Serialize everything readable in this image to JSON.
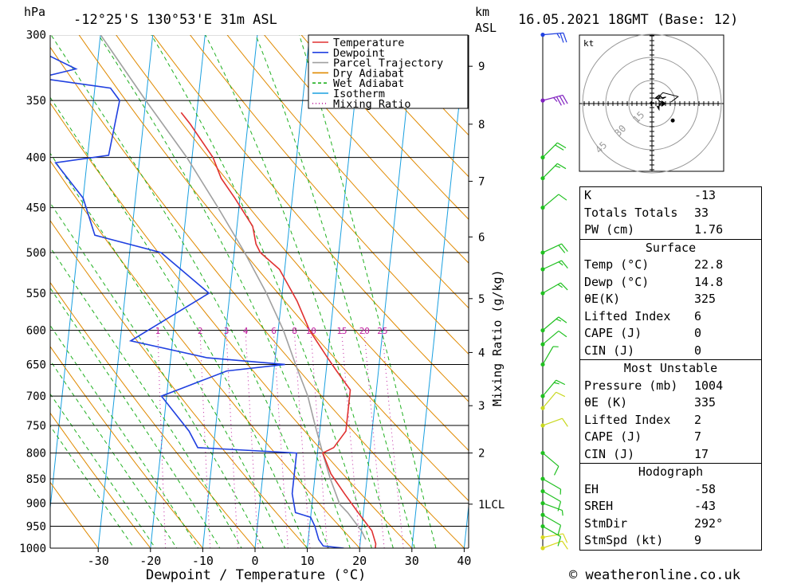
{
  "header": {
    "location": "-12°25'S 130°53'E 31m ASL",
    "datetime": "16.05.2021 18GMT (Base: 12)",
    "hpa_unit": "hPa",
    "km_unit": "km",
    "asl_unit": "ASL"
  },
  "footer": {
    "copyright": "© weatheronline.co.uk"
  },
  "chart_data": {
    "type": "skew-t log-p sounding",
    "xlabel": "Dewpoint / Temperature (°C)",
    "mixing_ratio_axis_label": "Mixing Ratio (g/kg)",
    "x_ticks": [
      -30,
      -20,
      -10,
      0,
      10,
      20,
      30,
      40
    ],
    "x_range": [
      -40,
      40
    ],
    "pressure_range_hpa": [
      1000,
      300
    ],
    "pressure_ticks": [
      300,
      350,
      400,
      450,
      500,
      550,
      600,
      650,
      700,
      750,
      800,
      850,
      900,
      950,
      1000
    ],
    "km_ticks": [
      {
        "label": "9",
        "p": 323
      },
      {
        "label": "8",
        "p": 370
      },
      {
        "label": "7",
        "p": 423
      },
      {
        "label": "6",
        "p": 482
      },
      {
        "label": "5",
        "p": 557
      },
      {
        "label": "4",
        "p": 632
      },
      {
        "label": "3",
        "p": 716
      },
      {
        "label": "2",
        "p": 800
      },
      {
        "label": "1",
        "p": 902
      }
    ],
    "lcl": {
      "label": "LCL",
      "p": 902
    },
    "mixing_ratio_labels": [
      "1",
      "2",
      "3",
      "4",
      "6",
      "8",
      "10",
      "15",
      "20",
      "25"
    ],
    "mixing_ratio_values": [
      1,
      2,
      3,
      4,
      6,
      8,
      10,
      15,
      20,
      25
    ],
    "legend": [
      {
        "name": "Temperature",
        "color": "#e03030",
        "style": "solid"
      },
      {
        "name": "Dewpoint",
        "color": "#2040e0",
        "style": "solid"
      },
      {
        "name": "Parcel Trajectory",
        "color": "#a0a0a0",
        "style": "solid"
      },
      {
        "name": "Dry Adiabat",
        "color": "#e08a00",
        "style": "solid"
      },
      {
        "name": "Wet Adiabat",
        "color": "#20b020",
        "style": "dashed"
      },
      {
        "name": "Isotherm",
        "color": "#1aa0e0",
        "style": "solid"
      },
      {
        "name": "Mixing Ratio",
        "color": "#c020a0",
        "style": "dotted"
      }
    ],
    "series": [
      {
        "name": "Temperature",
        "color": "#e03030",
        "points": [
          {
            "p": 1000,
            "t": 23
          },
          {
            "p": 990,
            "t": 23
          },
          {
            "p": 960,
            "t": 22
          },
          {
            "p": 920,
            "t": 19
          },
          {
            "p": 880,
            "t": 16
          },
          {
            "p": 840,
            "t": 13
          },
          {
            "p": 800,
            "t": 11
          },
          {
            "p": 790,
            "t": 13
          },
          {
            "p": 760,
            "t": 15
          },
          {
            "p": 720,
            "t": 15
          },
          {
            "p": 690,
            "t": 15
          },
          {
            "p": 660,
            "t": 12
          },
          {
            "p": 640,
            "t": 10
          },
          {
            "p": 600,
            "t": 6
          },
          {
            "p": 560,
            "t": 3
          },
          {
            "p": 520,
            "t": -1
          },
          {
            "p": 500,
            "t": -5
          },
          {
            "p": 490,
            "t": -6
          },
          {
            "p": 470,
            "t": -7
          },
          {
            "p": 440,
            "t": -11
          },
          {
            "p": 420,
            "t": -14
          },
          {
            "p": 400,
            "t": -16
          },
          {
            "p": 370,
            "t": -21
          },
          {
            "p": 360,
            "t": -23
          }
        ]
      },
      {
        "name": "Dewpoint",
        "color": "#2040e0",
        "points": [
          {
            "p": 1000,
            "t": 17
          },
          {
            "p": 995,
            "t": 13
          },
          {
            "p": 980,
            "t": 12
          },
          {
            "p": 950,
            "t": 11
          },
          {
            "p": 930,
            "t": 10
          },
          {
            "p": 920,
            "t": 7
          },
          {
            "p": 880,
            "t": 6
          },
          {
            "p": 850,
            "t": 6
          },
          {
            "p": 820,
            "t": 6
          },
          {
            "p": 800,
            "t": 6
          },
          {
            "p": 790,
            "t": -13
          },
          {
            "p": 760,
            "t": -15
          },
          {
            "p": 700,
            "t": -21
          },
          {
            "p": 690,
            "t": -18
          },
          {
            "p": 660,
            "t": -9
          },
          {
            "p": 650,
            "t": 2
          },
          {
            "p": 640,
            "t": -13
          },
          {
            "p": 615,
            "t": -28
          },
          {
            "p": 550,
            "t": -14
          },
          {
            "p": 500,
            "t": -24
          },
          {
            "p": 480,
            "t": -37
          },
          {
            "p": 440,
            "t": -40
          },
          {
            "p": 405,
            "t": -46
          },
          {
            "p": 398,
            "t": -36
          },
          {
            "p": 350,
            "t": -35
          },
          {
            "p": 340,
            "t": -37
          },
          {
            "p": 332,
            "t": -51
          },
          {
            "p": 325,
            "t": -44
          },
          {
            "p": 300,
            "t": -58
          }
        ]
      },
      {
        "name": "Parcel Trajectory",
        "color": "#a0a0a0",
        "points": [
          {
            "p": 980,
            "t": 21
          },
          {
            "p": 960,
            "t": 20
          },
          {
            "p": 920,
            "t": 17
          },
          {
            "p": 902,
            "t": 15.3
          },
          {
            "p": 850,
            "t": 13
          },
          {
            "p": 800,
            "t": 11
          },
          {
            "p": 750,
            "t": 9
          },
          {
            "p": 700,
            "t": 7
          },
          {
            "p": 650,
            "t": 4
          },
          {
            "p": 600,
            "t": 1
          },
          {
            "p": 550,
            "t": -3
          },
          {
            "p": 500,
            "t": -8
          },
          {
            "p": 450,
            "t": -14
          },
          {
            "p": 400,
            "t": -21
          },
          {
            "p": 350,
            "t": -30
          },
          {
            "p": 300,
            "t": -40
          }
        ]
      }
    ],
    "wind_barbs": [
      {
        "p": 1000,
        "dir": 250,
        "kt": 10
      },
      {
        "p": 975,
        "dir": 260,
        "kt": 12
      },
      {
        "p": 950,
        "dir": 300,
        "kt": 10
      },
      {
        "p": 925,
        "dir": 300,
        "kt": 10
      },
      {
        "p": 900,
        "dir": 290,
        "kt": 8
      },
      {
        "p": 875,
        "dir": 300,
        "kt": 10
      },
      {
        "p": 850,
        "dir": 300,
        "kt": 8
      },
      {
        "p": 800,
        "dir": 310,
        "kt": 12
      },
      {
        "p": 750,
        "dir": 250,
        "kt": 10
      },
      {
        "p": 720,
        "dir": 220,
        "kt": 10
      },
      {
        "p": 700,
        "dir": 220,
        "kt": 15
      },
      {
        "p": 650,
        "dir": 210,
        "kt": 8
      },
      {
        "p": 620,
        "dir": 230,
        "kt": 10
      },
      {
        "p": 600,
        "dir": 230,
        "kt": 15
      },
      {
        "p": 550,
        "dir": 240,
        "kt": 15
      },
      {
        "p": 520,
        "dir": 245,
        "kt": 15
      },
      {
        "p": 500,
        "dir": 245,
        "kt": 20
      },
      {
        "p": 450,
        "dir": 230,
        "kt": 10
      },
      {
        "p": 420,
        "dir": 225,
        "kt": 15
      },
      {
        "p": 400,
        "dir": 225,
        "kt": 20
      },
      {
        "p": 350,
        "dir": 255,
        "kt": 35
      },
      {
        "p": 300,
        "dir": 265,
        "kt": 25
      }
    ],
    "hodograph": {
      "unit": "kt",
      "ring_labels": [
        "15",
        "30",
        "45"
      ],
      "storm_motion": {
        "dir_deg": 292,
        "speed_kt": 9
      }
    }
  },
  "indices": {
    "general": [
      {
        "label": "K",
        "value": "-13"
      },
      {
        "label": "Totals Totals",
        "value": "33"
      },
      {
        "label": "PW (cm)",
        "value": "1.76"
      }
    ],
    "surface": {
      "title": "Surface",
      "rows": [
        {
          "label": "Temp (°C)",
          "value": "22.8"
        },
        {
          "label": "Dewp (°C)",
          "value": "14.8"
        },
        {
          "label": "θE(K)",
          "value": "325"
        },
        {
          "label": "Lifted Index",
          "value": "6"
        },
        {
          "label": "CAPE (J)",
          "value": "0"
        },
        {
          "label": "CIN (J)",
          "value": "0"
        }
      ]
    },
    "most_unstable": {
      "title": "Most Unstable",
      "rows": [
        {
          "label": "Pressure (mb)",
          "value": "1004"
        },
        {
          "label": "θE (K)",
          "value": "335"
        },
        {
          "label": "Lifted Index",
          "value": "2"
        },
        {
          "label": "CAPE (J)",
          "value": "7"
        },
        {
          "label": "CIN (J)",
          "value": "17"
        }
      ]
    },
    "hodograph": {
      "title": "Hodograph",
      "rows": [
        {
          "label": "EH",
          "value": "-58"
        },
        {
          "label": "SREH",
          "value": "-43"
        },
        {
          "label": "StmDir",
          "value": "292°"
        },
        {
          "label": "StmSpd (kt)",
          "value": "9"
        }
      ]
    }
  }
}
